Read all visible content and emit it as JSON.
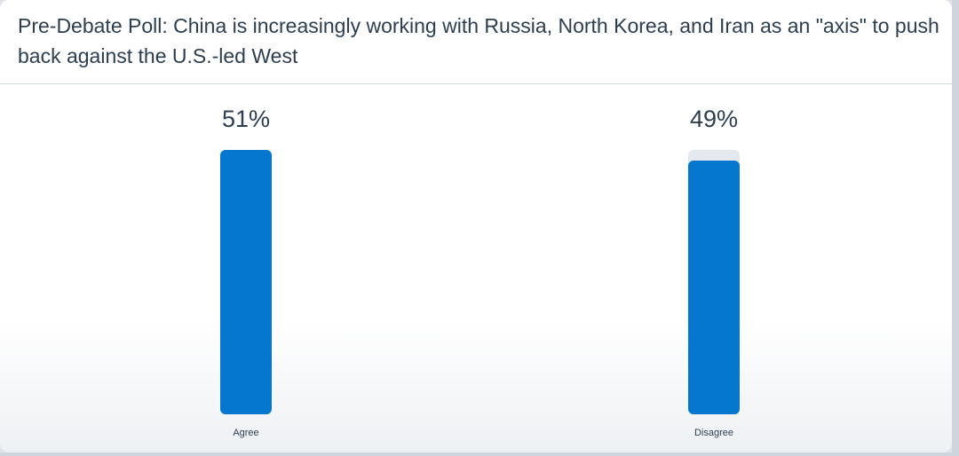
{
  "title": "Pre-Debate Poll: China is increasingly working with Russia, North Korea, and Iran as an \"axis\" to push back against the U.S.-led West",
  "colors": {
    "bar": "#0677cf",
    "track": "#e4e9ef",
    "text": "#2c3e50"
  },
  "chart_data": {
    "type": "bar",
    "title": "Pre-Debate Poll: China is increasingly working with Russia, North Korea, and Iran as an \"axis\" to push back against the U.S.-led West",
    "categories": [
      "Agree",
      "Disagree"
    ],
    "values": [
      51,
      49
    ],
    "value_labels": [
      "51%",
      "49%"
    ],
    "ylim": [
      0,
      51
    ],
    "grid": false,
    "legend": "none"
  }
}
